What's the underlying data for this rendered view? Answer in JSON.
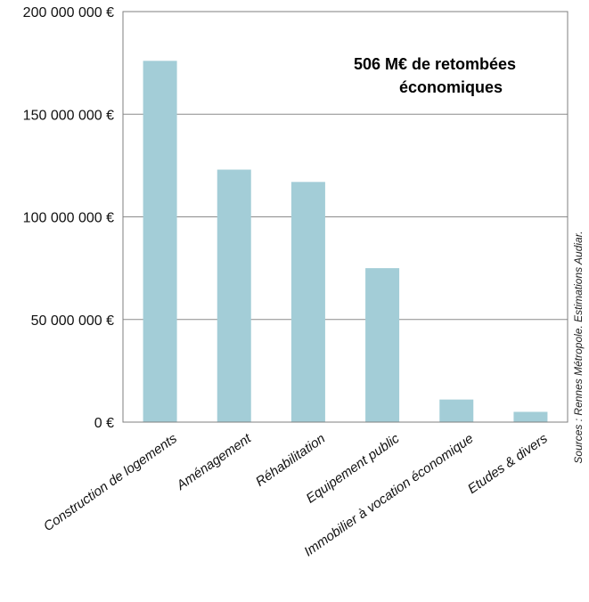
{
  "chart_data": {
    "type": "bar",
    "categories": [
      "Construction de logements",
      "Aménagement",
      "Réhabilitation",
      "Equipement public",
      "Immobilier à vocation économique",
      "Etudes & divers"
    ],
    "values": [
      176000000,
      123000000,
      117000000,
      75000000,
      11000000,
      5000000
    ],
    "ylim": [
      0,
      200000000
    ],
    "yticks": [
      0,
      50000000,
      100000000,
      150000000,
      200000000
    ],
    "ytick_labels": [
      "0 €",
      "50 000 000 €",
      "100 000 000 €",
      "150 000 000 €",
      "200 000 000 €"
    ],
    "title": "",
    "xlabel": "",
    "ylabel": "",
    "grid": true,
    "bar_color": "#a3cdd7",
    "annotation": {
      "line1": "506 M€ de retombées",
      "line2": "économiques"
    },
    "source": "Sources : Rennes Métropole. Estimations Audiar."
  }
}
